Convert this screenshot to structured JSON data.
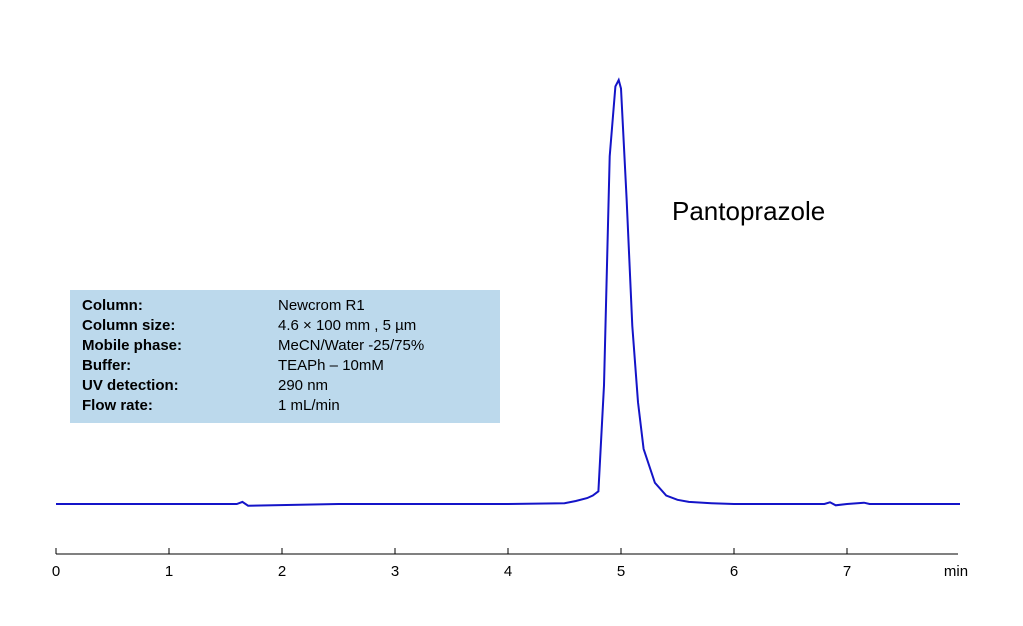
{
  "chart_data": {
    "type": "line",
    "title": "",
    "xlabel": "min",
    "ylabel": "",
    "xlim": [
      0,
      8
    ],
    "x_ticks": [
      0,
      1,
      2,
      3,
      4,
      5,
      6,
      7
    ],
    "grid": false,
    "series": [
      {
        "color": "#1414c8",
        "peaks": [
          {
            "label": "Pantoprazole",
            "retention_time": 4.98,
            "relative_height": 1.0
          }
        ],
        "x": [
          0,
          0.8,
          1.6,
          1.65,
          1.7,
          2.5,
          4.0,
          4.5,
          4.6,
          4.7,
          4.75,
          4.8,
          4.85,
          4.9,
          4.95,
          4.98,
          5.0,
          5.05,
          5.1,
          5.15,
          5.2,
          5.3,
          5.4,
          5.5,
          5.6,
          5.8,
          6.0,
          6.8,
          6.85,
          6.9,
          7.0,
          7.15,
          7.2,
          8.0
        ],
        "y": [
          0.0,
          0.0,
          0.0,
          0.005,
          -0.004,
          0.0,
          0.0,
          0.002,
          0.007,
          0.014,
          0.02,
          0.03,
          0.28,
          0.82,
          0.985,
          1.0,
          0.98,
          0.72,
          0.42,
          0.24,
          0.13,
          0.05,
          0.02,
          0.01,
          0.005,
          0.002,
          0.0,
          0.0,
          0.004,
          -0.003,
          0.0,
          0.003,
          0.0,
          0.0
        ]
      }
    ]
  },
  "annotation": {
    "peak_name": "Pantoprazole"
  },
  "conditions": [
    {
      "key": "Column:",
      "value": "Newcrom R1"
    },
    {
      "key": "Column size:",
      "value": "4.6 × 100 mm , 5 µm"
    },
    {
      "key": "Mobile phase:",
      "value": "MeCN/Water -25/75%"
    },
    {
      "key": "Buffer:",
      "value": "TEAPh – 10mM"
    },
    {
      "key": "UV detection:",
      "value": "290 nm"
    },
    {
      "key": "Flow rate:",
      "value": "1 mL/min"
    }
  ]
}
